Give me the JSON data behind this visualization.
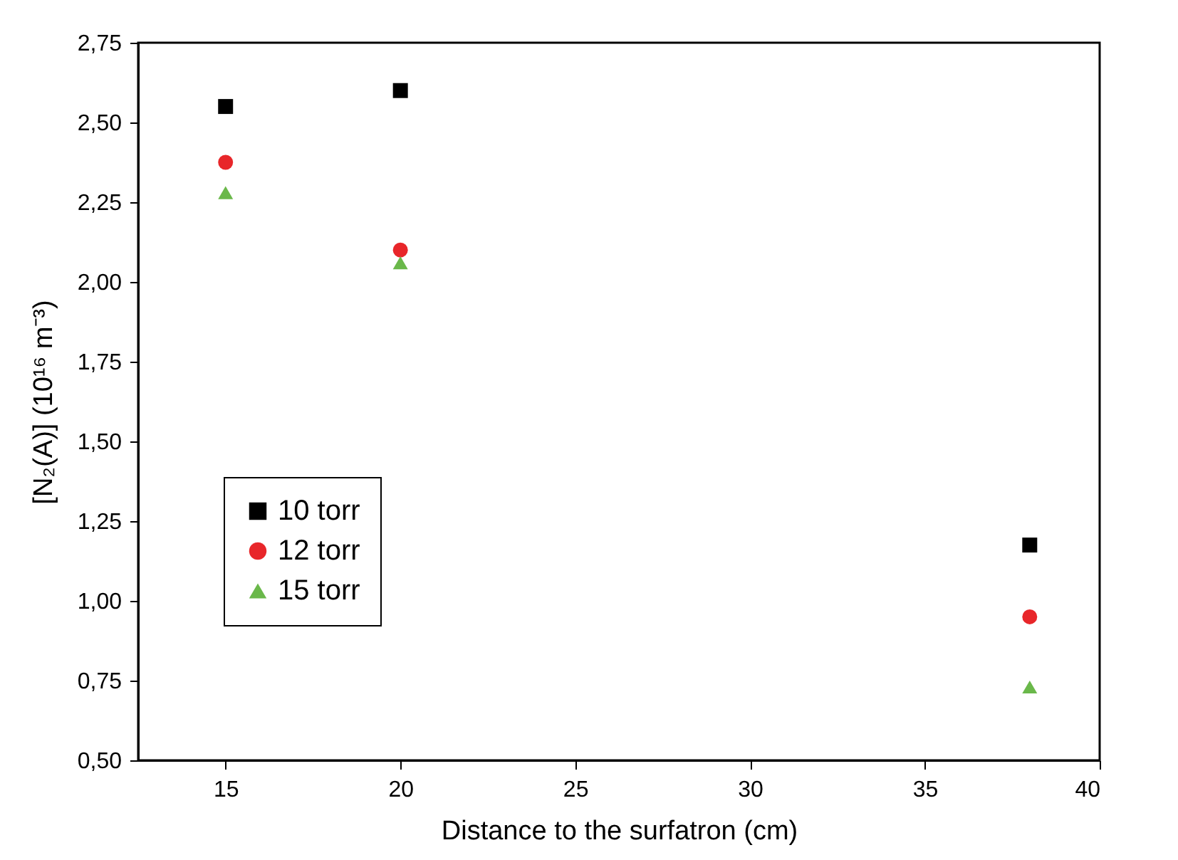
{
  "chart_data": {
    "type": "scatter",
    "xlabel": "Distance to the surfatron (cm)",
    "ylabel": "[N₂(A)] (10¹⁶ m⁻³)",
    "x": [
      15,
      20,
      38
    ],
    "series": [
      {
        "name": "10 torr",
        "color": "#000000",
        "marker": "square",
        "values": [
          2.55,
          2.6,
          1.175
        ]
      },
      {
        "name": "12 torr",
        "color": "#e8262a",
        "marker": "circle",
        "values": [
          2.375,
          2.1,
          0.95
        ]
      },
      {
        "name": "15 torr",
        "color": "#6ab84a",
        "marker": "triangle",
        "values": [
          2.28,
          2.06,
          0.73
        ]
      }
    ],
    "xlim": [
      12.5,
      40
    ],
    "xticks": [
      15,
      20,
      25,
      30,
      35,
      40
    ],
    "ylim": [
      0.5,
      2.75
    ],
    "yticks": [
      {
        "value": 0.5,
        "label": "0,50"
      },
      {
        "value": 0.75,
        "label": "0,75"
      },
      {
        "value": 1.0,
        "label": "1,00"
      },
      {
        "value": 1.25,
        "label": "1,25"
      },
      {
        "value": 1.5,
        "label": "1,50"
      },
      {
        "value": 1.75,
        "label": "1,75"
      },
      {
        "value": 2.0,
        "label": "2,00"
      },
      {
        "value": 2.25,
        "label": "2,25"
      },
      {
        "value": 2.5,
        "label": "2,50"
      },
      {
        "value": 2.75,
        "label": "2,75"
      }
    ],
    "legend": "bottom left",
    "grid": false
  }
}
